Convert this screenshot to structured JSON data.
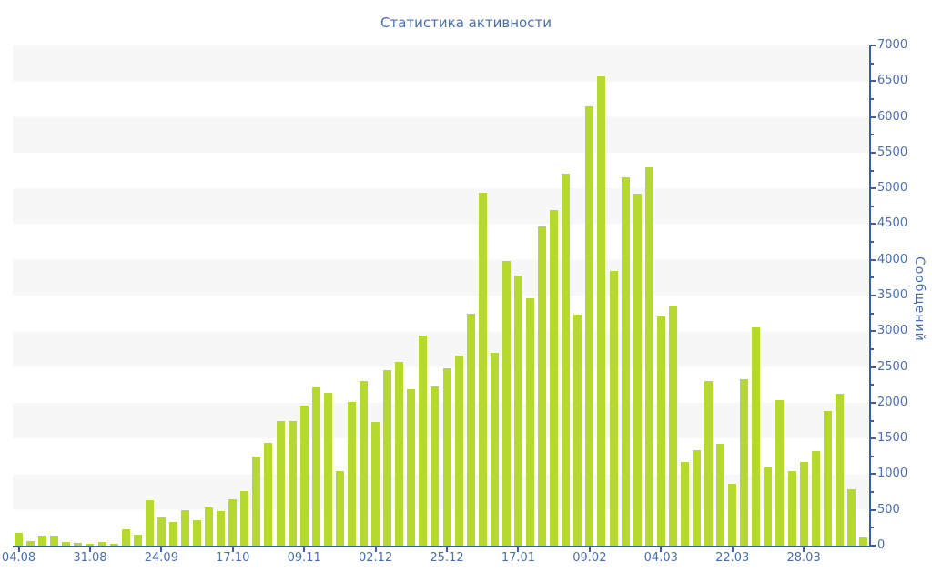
{
  "chart_data": {
    "type": "bar",
    "title": "Статистика активности",
    "ylabel": "Сообщений",
    "xlabel": "",
    "values": [
      180,
      60,
      140,
      140,
      45,
      35,
      30,
      45,
      30,
      230,
      150,
      640,
      400,
      330,
      500,
      360,
      530,
      490,
      650,
      760,
      1250,
      1440,
      1740,
      1740,
      1960,
      2210,
      2140,
      1040,
      2010,
      2300,
      1730,
      2460,
      2570,
      2190,
      2940,
      2230,
      2480,
      2660,
      3250,
      4940,
      2700,
      3980,
      3780,
      3460,
      4470,
      4700,
      5210,
      3230,
      6150,
      6570,
      3840,
      5150,
      4930,
      5300,
      3210,
      3360,
      1170,
      1340,
      2300,
      1420,
      860,
      2330,
      3050,
      1100,
      2040,
      1040,
      1170,
      1320,
      1890,
      2130,
      790,
      120
    ],
    "x_tick_labels": [
      "04.08",
      "31.08",
      "24.09",
      "17.10",
      "09.11",
      "02.12",
      "25.12",
      "17.01",
      "09.02",
      "04.03",
      "22.03",
      "28.03"
    ],
    "x_tick_indices": [
      0,
      6,
      12,
      18,
      24,
      30,
      36,
      42,
      48,
      54,
      60,
      66
    ],
    "ylim": [
      0,
      7000
    ],
    "y_major_step": 500,
    "y_minor_step": 250,
    "y_tick_labels": [
      "0",
      "500",
      "1000",
      "1500",
      "2000",
      "2500",
      "3000",
      "3500",
      "4000",
      "4500",
      "5000",
      "5500",
      "6000",
      "6500",
      "7000"
    ],
    "legend": "none",
    "grid": "alternating horizontal gray/white bands, one per 500 units",
    "colors": {
      "bar": "#b5d92f",
      "label_text": "#4a6fad",
      "axis_line": "#3d5e9c",
      "band_gray": "#f7f7f8",
      "background": "#ffffff"
    }
  }
}
